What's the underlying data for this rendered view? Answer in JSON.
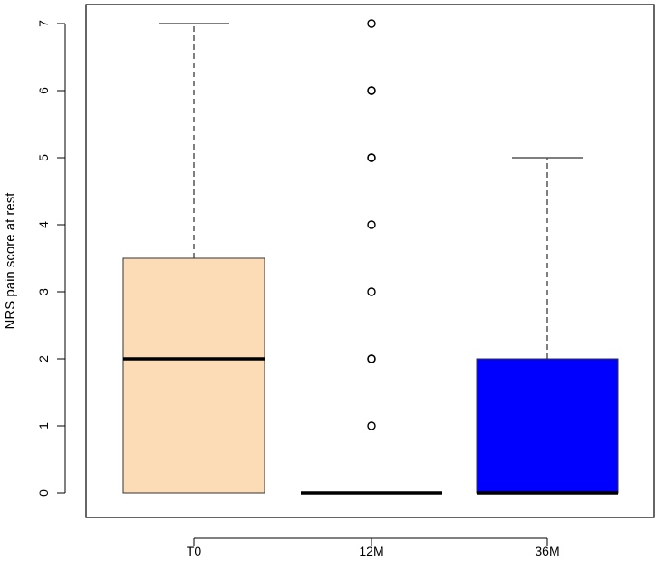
{
  "chart_data": {
    "type": "boxplot",
    "ylabel": "NRS pain score at rest",
    "ylim": [
      0,
      7
    ],
    "y_ticks": [
      0,
      1,
      2,
      3,
      4,
      5,
      6,
      7
    ],
    "grid": false,
    "legend": "none",
    "categories": [
      "T0",
      "12M",
      "36M"
    ],
    "boxes": [
      {
        "category": "T0",
        "whisker_low": 0,
        "q1": 0,
        "median": 2,
        "q3": 3.5,
        "whisker_high": 7,
        "outliers": [],
        "fill": "#fcdcb6"
      },
      {
        "category": "12M",
        "whisker_low": 0,
        "q1": 0,
        "median": 0,
        "q3": 0,
        "whisker_high": 0,
        "outliers": [
          1,
          2,
          2,
          3,
          4,
          5,
          5,
          6,
          6,
          7
        ],
        "fill": "#ffffff"
      },
      {
        "category": "36M",
        "whisker_low": 0,
        "q1": 0,
        "median": 0,
        "q3": 2,
        "whisker_high": 5,
        "outliers": [],
        "fill": "#0000ff"
      }
    ]
  }
}
